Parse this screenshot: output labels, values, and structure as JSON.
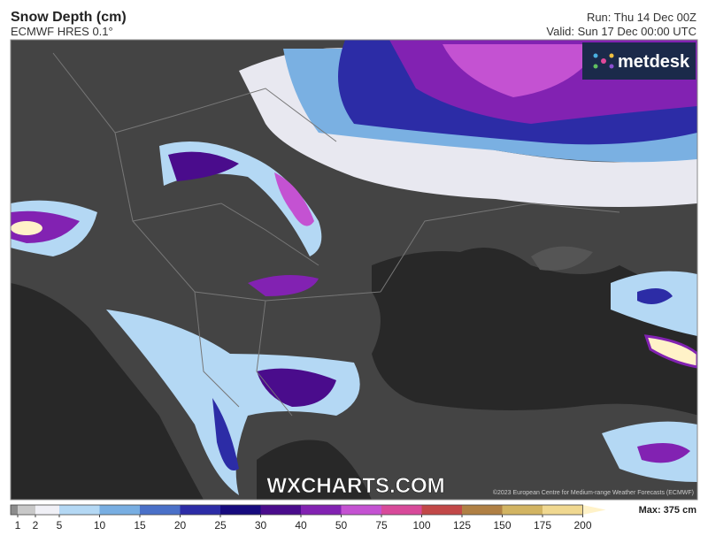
{
  "header": {
    "title": "Snow Depth (cm)",
    "subtitle": "ECMWF HRES 0.1°",
    "run": "Run: Thu 14 Dec 00Z",
    "valid": "Valid: Sun 17 Dec 00:00 UTC"
  },
  "map": {
    "brand": "metdesk",
    "watermark": "WXCHARTS.COM",
    "copyright": "©2023 European Centre for Medium-range Weather Forecasts (ECMWF)"
  },
  "legend": {
    "ticks": [
      "1",
      "2",
      "5",
      "10",
      "15",
      "20",
      "25",
      "30",
      "40",
      "50",
      "75",
      "100",
      "125",
      "150",
      "175",
      "200"
    ],
    "colors": [
      "#8c8c8c",
      "#c8c8c8",
      "#f0f0f6",
      "#b4d8f4",
      "#78aee2",
      "#4a70c8",
      "#2c2ca6",
      "#160a7e",
      "#4a0c8c",
      "#8222b2",
      "#c452d2",
      "#d84a9a",
      "#c24848",
      "#b08044",
      "#d2b462",
      "#f0d890",
      "#fff2c8"
    ],
    "max": "Max: 375 cm"
  }
}
